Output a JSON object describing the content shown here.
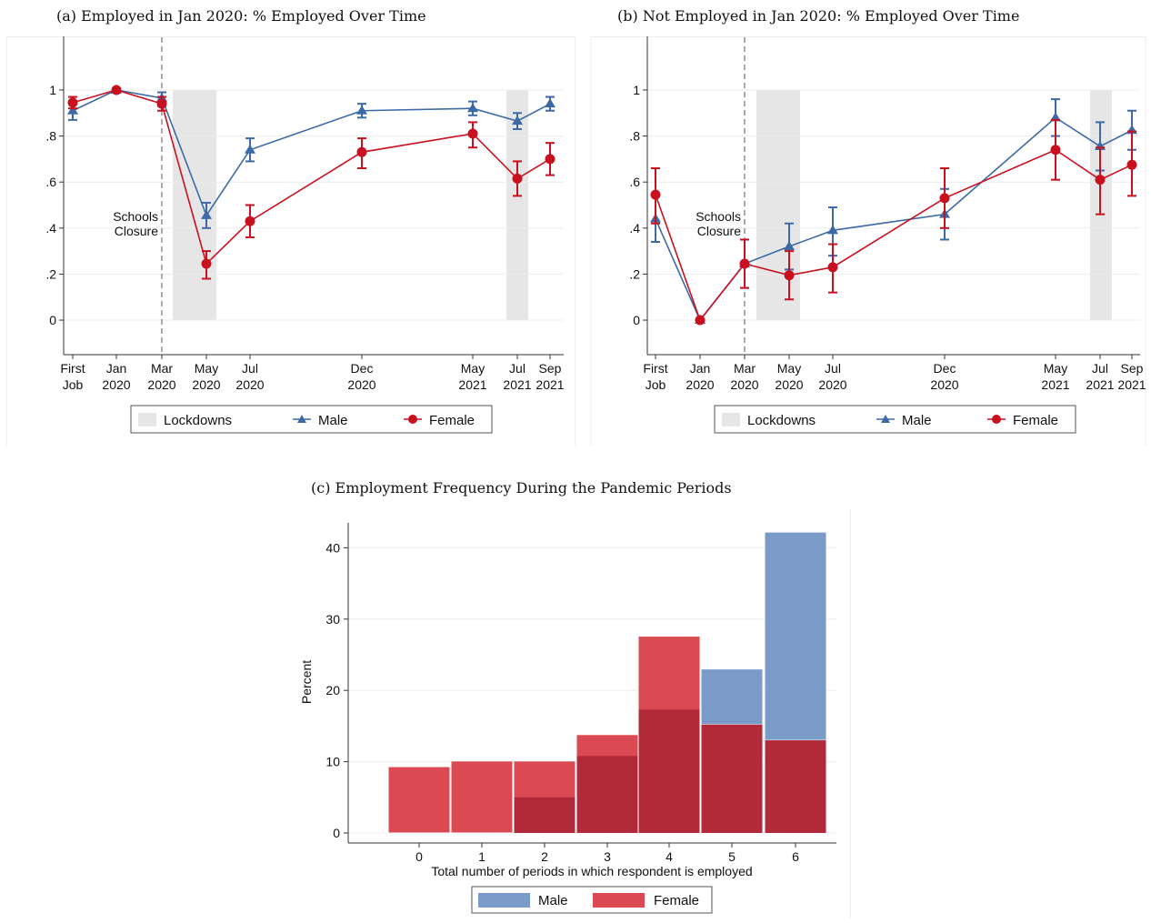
{
  "colors": {
    "male": "#3d6aa7",
    "female": "#c8101e",
    "male_hist": "#7a9bc7",
    "female_hist": "#db4a52",
    "overlap": "#b22a3a",
    "lockdown": "#e6e6e6"
  },
  "shared_lines": {
    "categories": [
      "First Job",
      "Jan 2020",
      "Mar 2020",
      "May 2020",
      "Jul 2020",
      "Dec 2020",
      "May 2021",
      "Jul 2021",
      "Sep 2021"
    ],
    "tick_lines": [
      [
        "First",
        "Job"
      ],
      [
        "Jan",
        "2020"
      ],
      [
        "Mar",
        "2020"
      ],
      [
        "May",
        "2020"
      ],
      [
        "Jul",
        "2020"
      ],
      [
        "Dec",
        "2020"
      ],
      [
        "May",
        "2021"
      ],
      [
        "Jul",
        "2021"
      ],
      [
        "Sep",
        "2021"
      ]
    ],
    "y_ticks": [
      "0",
      ".2",
      ".4",
      ".6",
      ".8",
      "1"
    ],
    "annotation": [
      "Schools",
      "Closure"
    ],
    "legend": [
      "Lockdowns",
      "Male",
      "Female"
    ]
  },
  "chart_data": [
    {
      "id": "a",
      "title": "(a) Employed in Jan 2020: % Employed Over Time",
      "type": "line",
      "ylim": [
        -0.15,
        1.15
      ],
      "series": [
        {
          "name": "Male",
          "values": [
            0.91,
            1.0,
            0.965,
            0.455,
            0.74,
            0.91,
            0.92,
            0.865,
            0.94
          ],
          "ci": [
            [
              0.87,
              0.95
            ],
            [
              1.0,
              1.0
            ],
            [
              0.93,
              0.99
            ],
            [
              0.4,
              0.51
            ],
            [
              0.69,
              0.79
            ],
            [
              0.88,
              0.94
            ],
            [
              0.89,
              0.95
            ],
            [
              0.83,
              0.9
            ],
            [
              0.91,
              0.97
            ]
          ]
        },
        {
          "name": "Female",
          "values": [
            0.945,
            1.0,
            0.94,
            0.245,
            0.43,
            0.73,
            0.81,
            0.615,
            0.7
          ],
          "ci": [
            [
              0.92,
              0.97
            ],
            [
              1.0,
              1.0
            ],
            [
              0.91,
              0.97
            ],
            [
              0.18,
              0.3
            ],
            [
              0.36,
              0.5
            ],
            [
              0.66,
              0.79
            ],
            [
              0.75,
              0.86
            ],
            [
              0.54,
              0.69
            ],
            [
              0.63,
              0.77
            ]
          ]
        }
      ]
    },
    {
      "id": "b",
      "title": "(b) Not Employed in Jan 2020: % Employed Over Time",
      "type": "line",
      "ylim": [
        -0.15,
        1.15
      ],
      "series": [
        {
          "name": "Male",
          "values": [
            0.44,
            0.0,
            0.245,
            0.32,
            0.39,
            0.46,
            0.88,
            0.755,
            0.825
          ],
          "ci": [
            [
              0.34,
              0.54
            ],
            [
              0.0,
              0.0
            ],
            [
              0.14,
              0.35
            ],
            [
              0.22,
              0.42
            ],
            [
              0.28,
              0.49
            ],
            [
              0.35,
              0.57
            ],
            [
              0.8,
              0.96
            ],
            [
              0.65,
              0.86
            ],
            [
              0.74,
              0.91
            ]
          ]
        },
        {
          "name": "Female",
          "values": [
            0.545,
            0.0,
            0.245,
            0.195,
            0.23,
            0.53,
            0.74,
            0.61,
            0.675
          ],
          "ci": [
            [
              0.42,
              0.66
            ],
            [
              0.0,
              0.0
            ],
            [
              0.14,
              0.35
            ],
            [
              0.09,
              0.3
            ],
            [
              0.12,
              0.33
            ],
            [
              0.4,
              0.66
            ],
            [
              0.61,
              0.87
            ],
            [
              0.46,
              0.75
            ],
            [
              0.54,
              0.82
            ]
          ]
        }
      ]
    },
    {
      "id": "c",
      "title": "(c) Employment Frequency During the Pandemic Periods",
      "type": "bar",
      "categories": [
        "0",
        "1",
        "2",
        "3",
        "4",
        "5",
        "6"
      ],
      "xlabel": "Total number of periods in which respondent is employed",
      "ylabel": "Percent",
      "ylim": [
        0,
        44
      ],
      "y_ticks": [
        "0",
        "10",
        "20",
        "30",
        "40"
      ],
      "series": [
        {
          "name": "Male",
          "values": [
            0,
            0,
            5.0,
            10.8,
            17.3,
            23.0,
            42.2
          ]
        },
        {
          "name": "Female",
          "values": [
            9.3,
            10.1,
            10.1,
            13.8,
            27.6,
            15.2,
            13.0
          ]
        }
      ],
      "legend": [
        "Male",
        "Female"
      ]
    }
  ]
}
